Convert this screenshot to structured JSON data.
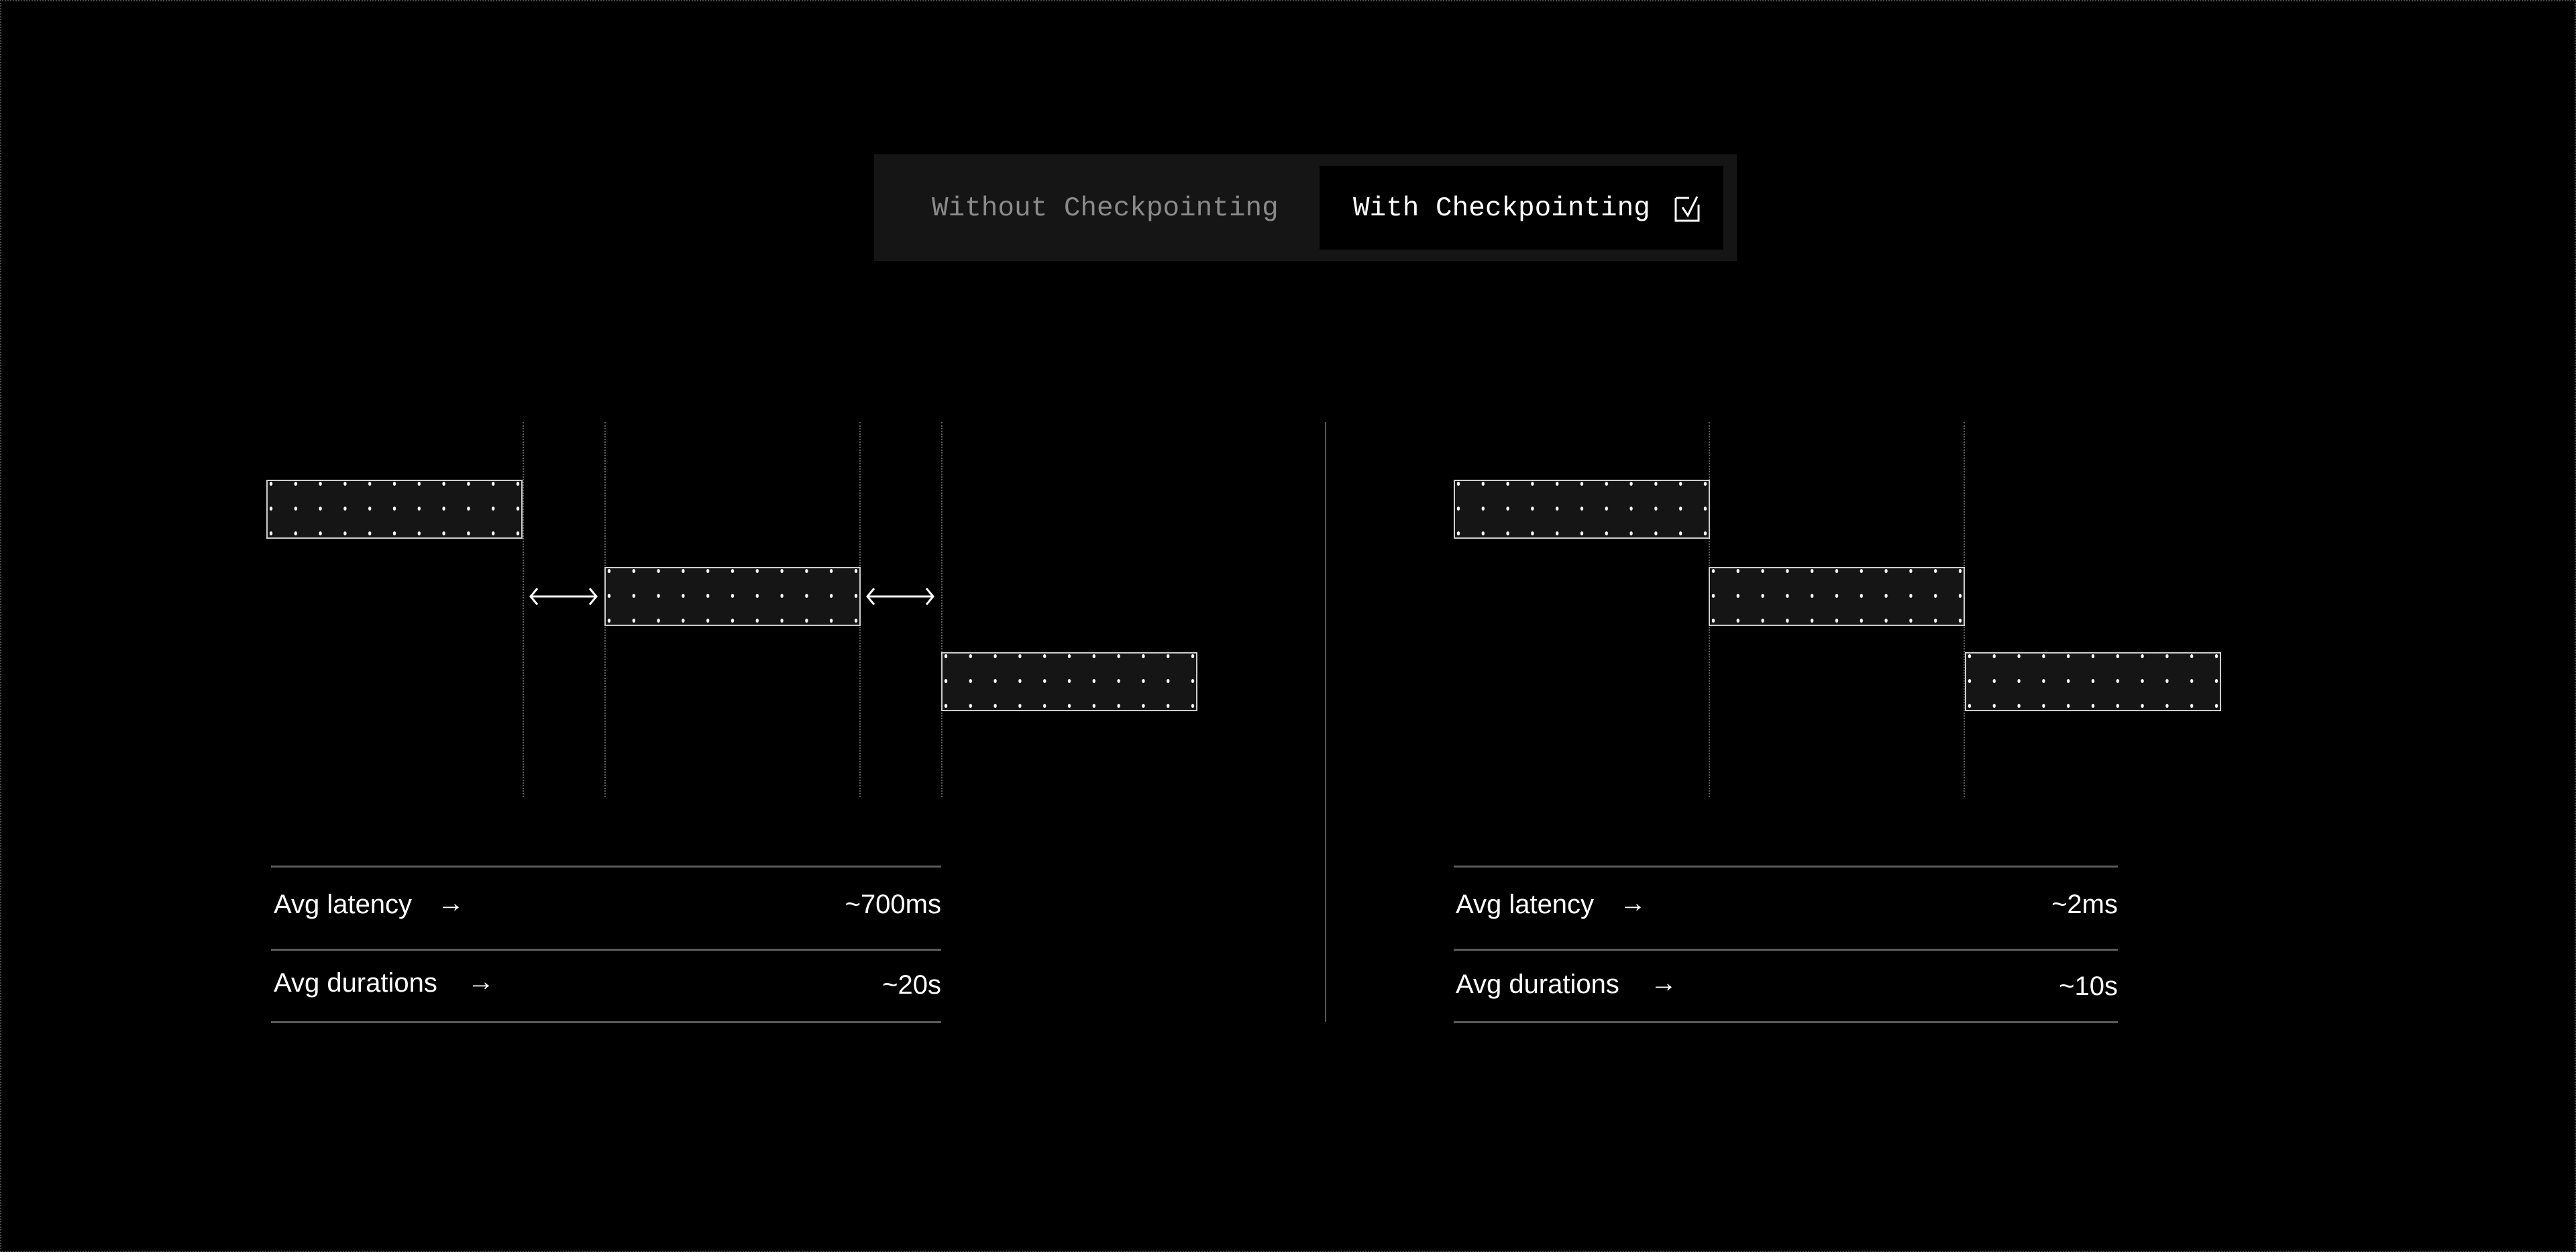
{
  "toggle": {
    "options": [
      {
        "label": "Without Checkpointing",
        "selected": false
      },
      {
        "label": "With Checkpointing",
        "selected": true,
        "icon": "checkbox-checked-icon"
      }
    ]
  },
  "left_panel": {
    "stats": [
      {
        "label": "Avg latency",
        "icon": "arrow-right-icon",
        "value": "~700ms"
      },
      {
        "label": "Avg durations",
        "icon": "arrow-right-icon",
        "value": "~20s"
      }
    ]
  },
  "right_panel": {
    "stats": [
      {
        "label": "Avg latency",
        "icon": "arrow-right-icon",
        "value": "~2ms"
      },
      {
        "label": "Avg durations",
        "icon": "arrow-right-icon",
        "value": "~10s"
      }
    ]
  },
  "colors": {
    "background": "#000000",
    "bar_fill": "#151515",
    "bar_border": "#cccccc",
    "muted_text": "#8a8a8a",
    "toggle_bg": "#151515"
  }
}
